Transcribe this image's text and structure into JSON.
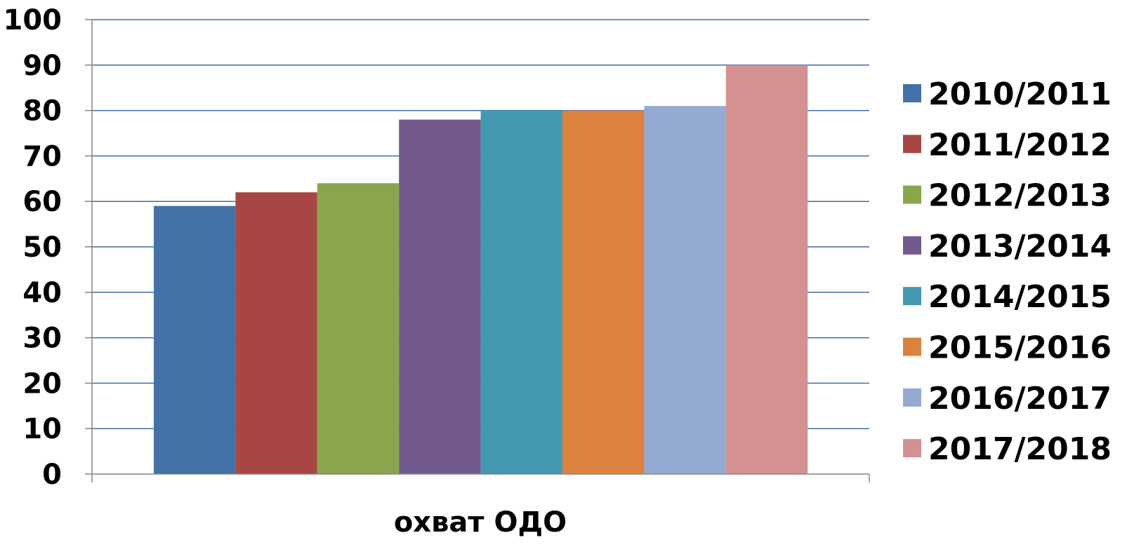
{
  "chart_data": {
    "type": "bar",
    "categories": [
      "охват ОДО"
    ],
    "series": [
      {
        "name": "2010/2011",
        "values": [
          59
        ],
        "color": "#4472A8"
      },
      {
        "name": "2011/2012",
        "values": [
          62
        ],
        "color": "#A84644"
      },
      {
        "name": "2012/2013",
        "values": [
          64
        ],
        "color": "#8AA64D"
      },
      {
        "name": "2013/2014",
        "values": [
          78
        ],
        "color": "#72598E"
      },
      {
        "name": "2014/2015",
        "values": [
          80
        ],
        "color": "#4499B1"
      },
      {
        "name": "2015/2016",
        "values": [
          80
        ],
        "color": "#DB823F"
      },
      {
        "name": "2016/2017",
        "values": [
          81
        ],
        "color": "#95AAD2"
      },
      {
        "name": "2017/2018",
        "values": [
          90
        ],
        "color": "#D39191"
      }
    ],
    "y_ticks": [
      "0",
      "10",
      "20",
      "30",
      "40",
      "50",
      "60",
      "70",
      "80",
      "90",
      "100"
    ],
    "ylim": [
      0,
      100
    ],
    "grid": true,
    "gridline_color": "#3F6CA8",
    "legend_position": "right"
  }
}
